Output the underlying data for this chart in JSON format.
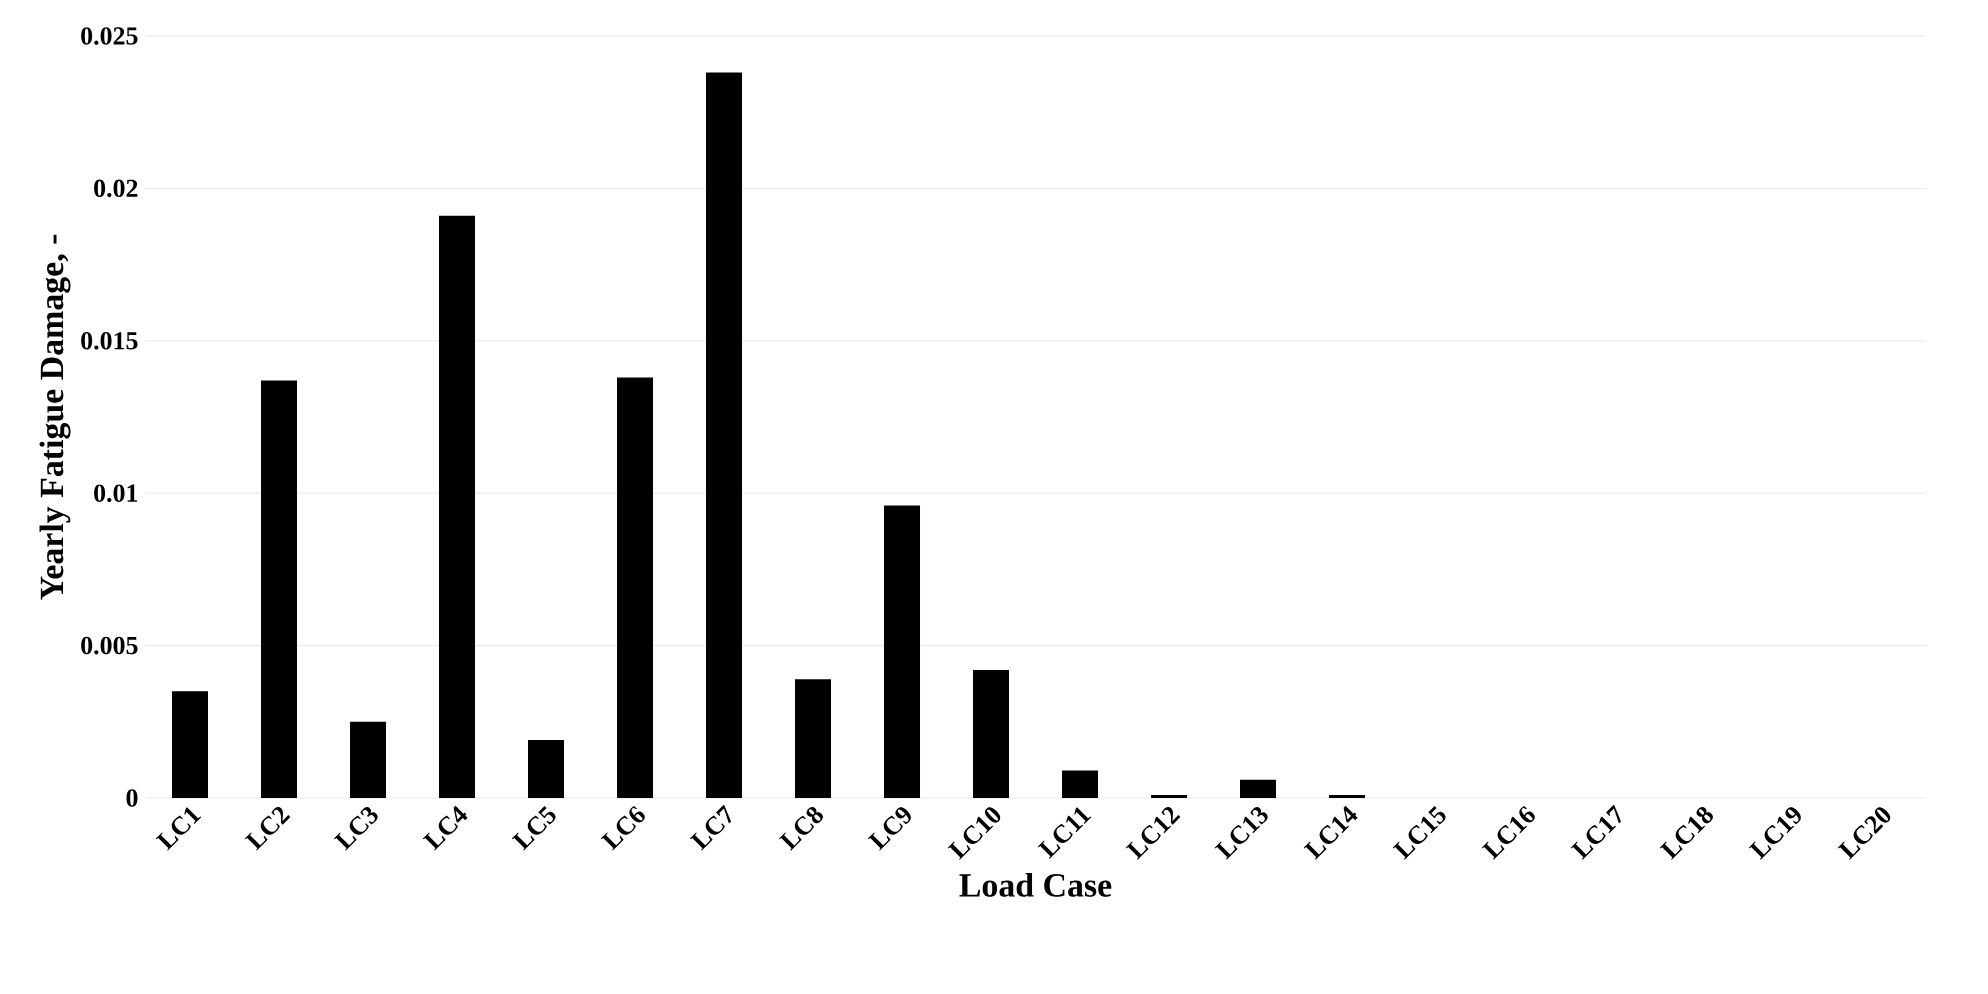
{
  "chart_data": {
    "type": "bar",
    "xlabel": "Load Case",
    "ylabel": "Yearly Fatigue Damage, -",
    "categories": [
      "LC1",
      "LC2",
      "LC3",
      "LC4",
      "LC5",
      "LC6",
      "LC7",
      "LC8",
      "LC9",
      "LC10",
      "LC11",
      "LC12",
      "LC13",
      "LC14",
      "LC15",
      "LC16",
      "LC17",
      "LC18",
      "LC19",
      "LC20"
    ],
    "values": [
      0.0035,
      0.0137,
      0.0025,
      0.0191,
      0.0019,
      0.0138,
      0.0238,
      0.0039,
      0.0096,
      0.0042,
      0.0009,
      0.0001,
      0.0006,
      0.0001,
      0,
      0,
      0,
      0,
      0,
      0
    ],
    "color": "#000000",
    "ylim": [
      0,
      0.025
    ],
    "yticks": [
      0,
      0.005,
      0.01,
      0.015,
      0.02,
      0.025
    ],
    "grid": "y"
  }
}
